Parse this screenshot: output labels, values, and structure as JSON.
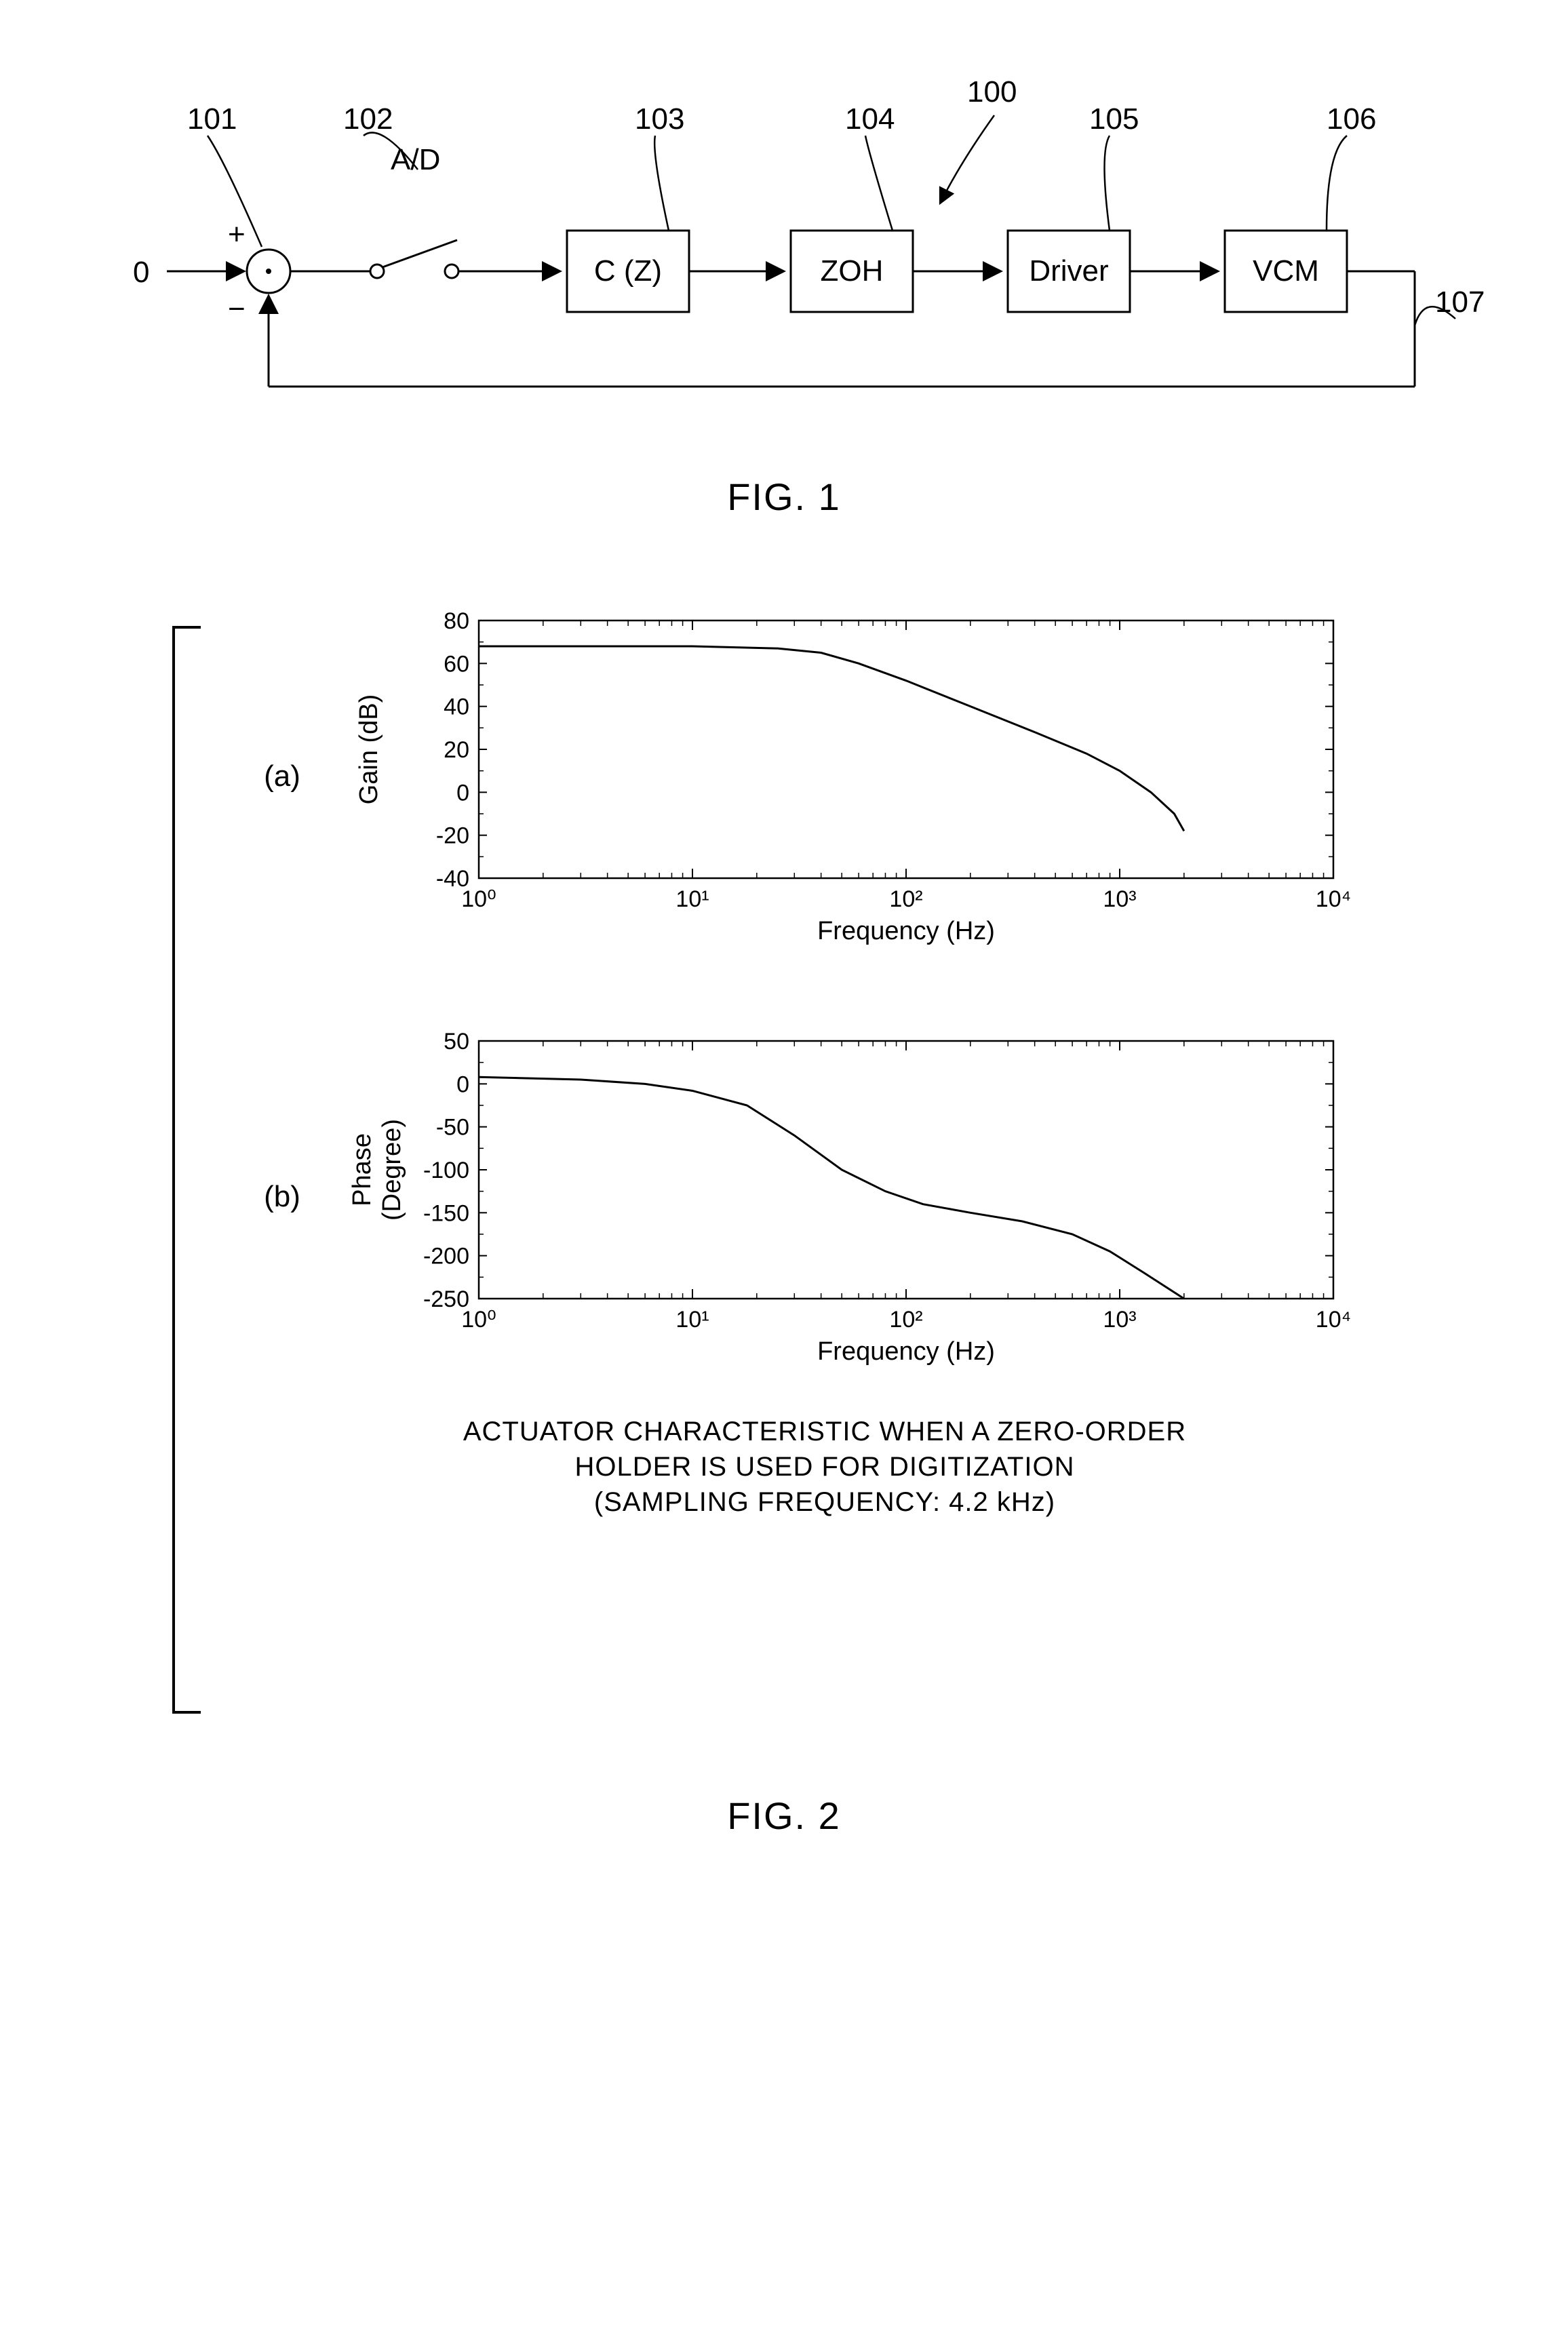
{
  "fig1": {
    "label": "FIG. 1",
    "callouts": {
      "c101": "101",
      "c102": "102",
      "c103": "103",
      "c104": "104",
      "c100": "100",
      "c105": "105",
      "c106": "106",
      "c107": "107"
    },
    "annotations": {
      "ad_label": "A/D",
      "input_zero": "0",
      "plus": "+",
      "minus": "−"
    },
    "blocks": {
      "cz": "C (Z)",
      "zoh": "ZOH",
      "driver": "Driver",
      "vcm": "VCM"
    }
  },
  "fig2": {
    "label": "FIG. 2",
    "sub_a": "(a)",
    "sub_b": "(b)",
    "caption_line1": "ACTUATOR  CHARACTERISTIC  WHEN  A   ZERO-ORDER",
    "caption_line2": "HOLDER  IS  USED  FOR  DIGITIZATION",
    "caption_line3": "(SAMPLING  FREQUENCY:  4.2  kHz)",
    "chart_a": {
      "type": "bode-gain",
      "xlabel": "Frequency (Hz)",
      "ylabel": "Gain (dB)",
      "xlim": [
        1,
        10000
      ],
      "xticks": [
        1,
        10,
        100,
        1000,
        10000
      ],
      "xtick_labels": [
        "10⁰",
        "10¹",
        "10²",
        "10³",
        "10⁴"
      ],
      "ylim": [
        -40,
        80
      ],
      "yticks": [
        -40,
        -20,
        0,
        20,
        40,
        60,
        80
      ],
      "line_color": "#000000",
      "line_width": 3,
      "background_color": "#ffffff",
      "border_color": "#000000",
      "tick_color": "#000000",
      "label_fontsize": 38,
      "tick_fontsize": 34,
      "data": [
        {
          "f": 1,
          "g": 68
        },
        {
          "f": 3,
          "g": 68
        },
        {
          "f": 10,
          "g": 68
        },
        {
          "f": 25,
          "g": 67
        },
        {
          "f": 40,
          "g": 65
        },
        {
          "f": 60,
          "g": 60
        },
        {
          "f": 100,
          "g": 52
        },
        {
          "f": 200,
          "g": 40
        },
        {
          "f": 400,
          "g": 28
        },
        {
          "f": 700,
          "g": 18
        },
        {
          "f": 1000,
          "g": 10
        },
        {
          "f": 1400,
          "g": 0
        },
        {
          "f": 1800,
          "g": -10
        },
        {
          "f": 2000,
          "g": -18
        }
      ]
    },
    "chart_b": {
      "type": "bode-phase",
      "xlabel": "Frequency (Hz)",
      "ylabel_line1": "Phase",
      "ylabel_line2": "(Degree)",
      "xlim": [
        1,
        10000
      ],
      "xticks": [
        1,
        10,
        100,
        1000,
        10000
      ],
      "xtick_labels": [
        "10⁰",
        "10¹",
        "10²",
        "10³",
        "10⁴"
      ],
      "ylim": [
        -250,
        50
      ],
      "yticks": [
        -250,
        -200,
        -150,
        -100,
        -50,
        0,
        50
      ],
      "line_color": "#000000",
      "line_width": 3,
      "background_color": "#ffffff",
      "border_color": "#000000",
      "tick_color": "#000000",
      "label_fontsize": 38,
      "tick_fontsize": 34,
      "data": [
        {
          "f": 1,
          "p": 8
        },
        {
          "f": 3,
          "p": 5
        },
        {
          "f": 6,
          "p": 0
        },
        {
          "f": 10,
          "p": -8
        },
        {
          "f": 18,
          "p": -25
        },
        {
          "f": 30,
          "p": -60
        },
        {
          "f": 50,
          "p": -100
        },
        {
          "f": 80,
          "p": -125
        },
        {
          "f": 120,
          "p": -140
        },
        {
          "f": 200,
          "p": -150
        },
        {
          "f": 350,
          "p": -160
        },
        {
          "f": 600,
          "p": -175
        },
        {
          "f": 900,
          "p": -195
        },
        {
          "f": 1300,
          "p": -220
        },
        {
          "f": 2000,
          "p": -250
        }
      ]
    }
  }
}
